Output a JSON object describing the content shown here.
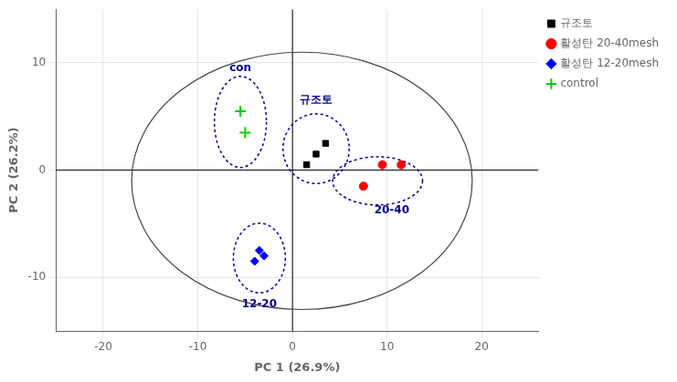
{
  "chart_data": {
    "type": "scatter",
    "x_label": "PC 1 (26.9%)",
    "y_label": "PC 2 (26.2%)",
    "xlim": [
      -25,
      26
    ],
    "ylim": [
      -15,
      15
    ],
    "xticks": [
      -20,
      -10,
      0,
      10,
      20
    ],
    "yticks": [
      -10,
      0,
      10
    ],
    "grid": true,
    "legend": "upper right",
    "series": [
      {
        "name": "규조토",
        "color": "#000000",
        "marker": "square",
        "points": [
          [
            2.5,
            1.5
          ],
          [
            1.5,
            0.5
          ],
          [
            3.5,
            2.5
          ]
        ]
      },
      {
        "name": "활성탄 20-40mesh",
        "color": "#ff0000",
        "marker": "circle",
        "points": [
          [
            7.5,
            -1.5
          ],
          [
            9.5,
            0.5
          ],
          [
            11.5,
            0.5
          ]
        ]
      },
      {
        "name": "활성탄 12-20mesh",
        "color": "#0000ff",
        "marker": "diamond",
        "points": [
          [
            -3.5,
            -7.5
          ],
          [
            -4.0,
            -8.5
          ],
          [
            -3.0,
            -8.0
          ]
        ]
      },
      {
        "name": "control",
        "color": "#00cc00",
        "marker": "plus",
        "points": [
          [
            -5.5,
            5.5
          ],
          [
            -5.0,
            3.5
          ]
        ]
      }
    ],
    "reference_lines": [
      {
        "axis": "x",
        "value": 0,
        "color": "#000000"
      },
      {
        "axis": "y",
        "value": 0,
        "color": "#000000"
      }
    ],
    "ellipses": [
      {
        "center": [
          1.0,
          -1.0
        ],
        "width": 36,
        "height": 24,
        "color": "#444444",
        "line_style": "solid"
      },
      {
        "center": [
          -5.5,
          4.5
        ],
        "width": 5.5,
        "height": 8.5,
        "color": "#000088",
        "line_style": "dotted",
        "label": "con",
        "label_x": -5.5,
        "label_y": 9.5
      },
      {
        "center": [
          2.5,
          2.0
        ],
        "width": 7.0,
        "height": 6.5,
        "color": "#000088",
        "line_style": "dotted",
        "label": "규조토",
        "label_x": 2.5,
        "label_y": 6.5
      },
      {
        "center": [
          9.0,
          -1.0
        ],
        "width": 9.5,
        "height": 4.5,
        "color": "#000088",
        "line_style": "dotted",
        "label": "20-40",
        "label_x": 10.5,
        "label_y": -3.8
      },
      {
        "center": [
          -3.5,
          -8.2
        ],
        "width": 5.5,
        "height": 6.5,
        "color": "#000088",
        "line_style": "dotted",
        "label": "12-20",
        "label_x": -3.5,
        "label_y": -12.5
      }
    ]
  }
}
